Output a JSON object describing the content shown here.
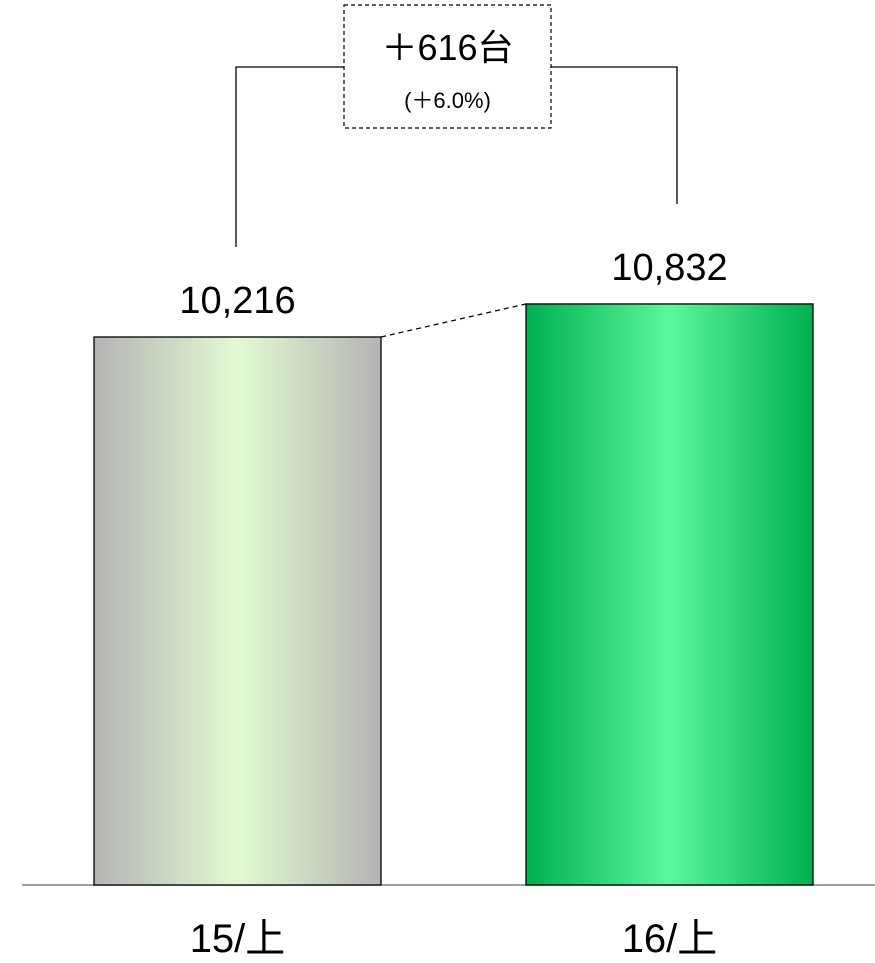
{
  "chart_data": {
    "type": "bar",
    "categories": [
      "15/上",
      "16/上"
    ],
    "values": [
      10216,
      10832
    ],
    "value_labels": [
      "10,216",
      "10,832"
    ],
    "difference": {
      "label": "＋616台",
      "percent_label": "(＋6.0%)"
    },
    "bar_colors": [
      "#b4b4b4",
      "#00b050"
    ],
    "bar_highlight_colors": [
      "#e2fad0",
      "#5cf79d"
    ],
    "axis_color": "#808080",
    "title": "",
    "xlabel": "",
    "ylabel": "",
    "grid": false
  }
}
